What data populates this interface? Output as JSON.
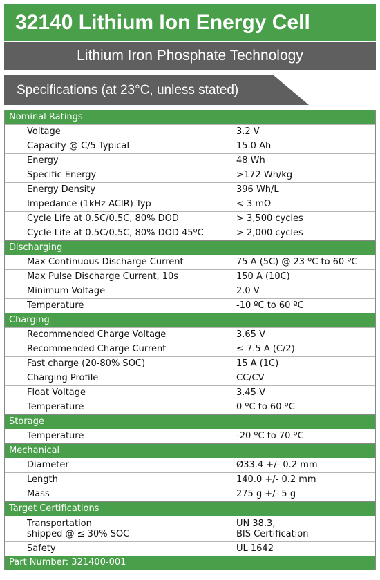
{
  "header": {
    "title": "32140 Lithium Ion Energy Cell",
    "subtitle": "Lithium Iron Phosphate Technology",
    "spec_heading": "Specifications (at 23°C, unless stated)"
  },
  "sections": [
    {
      "title": "Nominal Ratings",
      "rows": [
        {
          "label": "Voltage",
          "value": "3.2 V"
        },
        {
          "label": "Capacity @ C/5 Typical",
          "value": "15.0 Ah"
        },
        {
          "label": "Energy",
          "value": "48 Wh"
        },
        {
          "label": "Specific Energy",
          "value": ">172 Wh/kg"
        },
        {
          "label": "Energy Density",
          "value": "396 Wh/L"
        },
        {
          "label": "Impedance (1kHz ACIR) Typ",
          "value": "< 3 mΩ"
        },
        {
          "label": "Cycle Life at 0.5C/0.5C, 80% DOD",
          "value": "> 3,500 cycles"
        },
        {
          "label": "Cycle Life at 0.5C/0.5C, 80% DOD 45ºC",
          "value": "> 2,000 cycles"
        }
      ]
    },
    {
      "title": "Discharging",
      "rows": [
        {
          "label": "Max Continuous Discharge Current",
          "value": "75 A (5C) @ 23 ºC to 60 ºC"
        },
        {
          "label": "Max Pulse Discharge Current, 10s",
          "value": "150 A (10C)"
        },
        {
          "label": "Minimum Voltage",
          "value": "2.0 V"
        },
        {
          "label": "Temperature",
          "value": "-10 ºC to 60 ºC"
        }
      ]
    },
    {
      "title": "Charging",
      "rows": [
        {
          "label": "Recommended Charge Voltage",
          "value": "3.65 V"
        },
        {
          "label": "Recommended Charge Current",
          "value": "≤ 7.5 A (C/2)"
        },
        {
          "label": "Fast charge (20-80% SOC)",
          "value": "15 A (1C)"
        },
        {
          "label": "Charging Profile",
          "value": "CC/CV"
        },
        {
          "label": "Float Voltage",
          "value": "3.45 V"
        },
        {
          "label": "Temperature",
          "value": "0 ºC to 60 ºC"
        }
      ]
    },
    {
      "title": "Storage",
      "rows": [
        {
          "label": "Temperature",
          "value": "-20 ºC to 70 ºC"
        }
      ]
    },
    {
      "title": "Mechanical",
      "rows": [
        {
          "label": "Diameter",
          "value": "Ø33.4 +/- 0.2 mm"
        },
        {
          "label": "Length",
          "value": "140.0 +/- 0.2 mm"
        },
        {
          "label": "Mass",
          "value": "275 g +/- 5 g"
        }
      ]
    },
    {
      "title": "Target Certifications",
      "rows": [
        {
          "label": "Transportation\nshipped @ ≤ 30% SOC",
          "value": "UN 38.3,\nBIS Certification"
        },
        {
          "label": "Safety",
          "value": "UL 1642"
        }
      ]
    }
  ],
  "footer": {
    "part_number": "Part Number: 321400-001"
  },
  "colors": {
    "green": "#4aa04a",
    "gray": "#5f5f5f"
  }
}
